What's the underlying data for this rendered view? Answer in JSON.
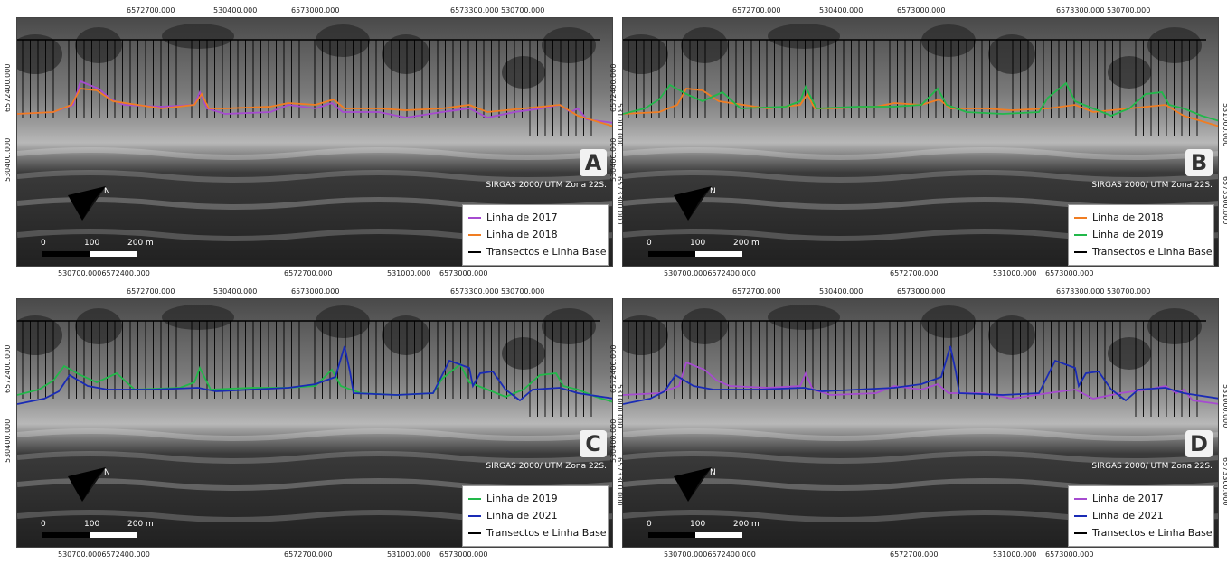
{
  "colors": {
    "line_2017": "#a64bd0",
    "line_2018": "#f07d22",
    "line_2019": "#22b84a",
    "line_2021": "#1a2bb5",
    "transects": "#000000"
  },
  "icons": [
    "north-arrow-icon"
  ],
  "crs_label": "SIRGAS 2000/ UTM Zona 22S.",
  "scale": {
    "labels": [
      "0",
      "100",
      "200 m"
    ]
  },
  "top_ticks": [
    "6572700.000",
    "530400.000",
    "6573000.000",
    "6573300.000 530700.000"
  ],
  "bottom_ticks": [
    "530700.0006572400.000",
    "6572700.000",
    "531000.000",
    "6573000.000"
  ],
  "left_ticks": [
    "6572400.000",
    "530400.000"
  ],
  "right_ticks": [
    "531000.000",
    "6573300.000"
  ],
  "panels": [
    {
      "letter": "A",
      "legend": [
        "Linha de 2017",
        "Linha de 2018",
        "Transectos e Linha Base"
      ],
      "series": [
        "line_2017",
        "line_2018"
      ]
    },
    {
      "letter": "B",
      "legend": [
        "Linha de 2018",
        "Linha de 2019",
        "Transectos e Linha Base"
      ],
      "series": [
        "line_2018",
        "line_2019"
      ]
    },
    {
      "letter": "C",
      "legend": [
        "Linha de 2019",
        "Linha de 2021",
        "Transectos e Linha Base"
      ],
      "series": [
        "line_2019",
        "line_2021"
      ]
    },
    {
      "letter": "D",
      "legend": [
        "Linha de 2017",
        "Linha de 2021",
        "Transectos e Linha Base"
      ],
      "series": [
        "line_2017",
        "line_2021"
      ]
    }
  ]
}
